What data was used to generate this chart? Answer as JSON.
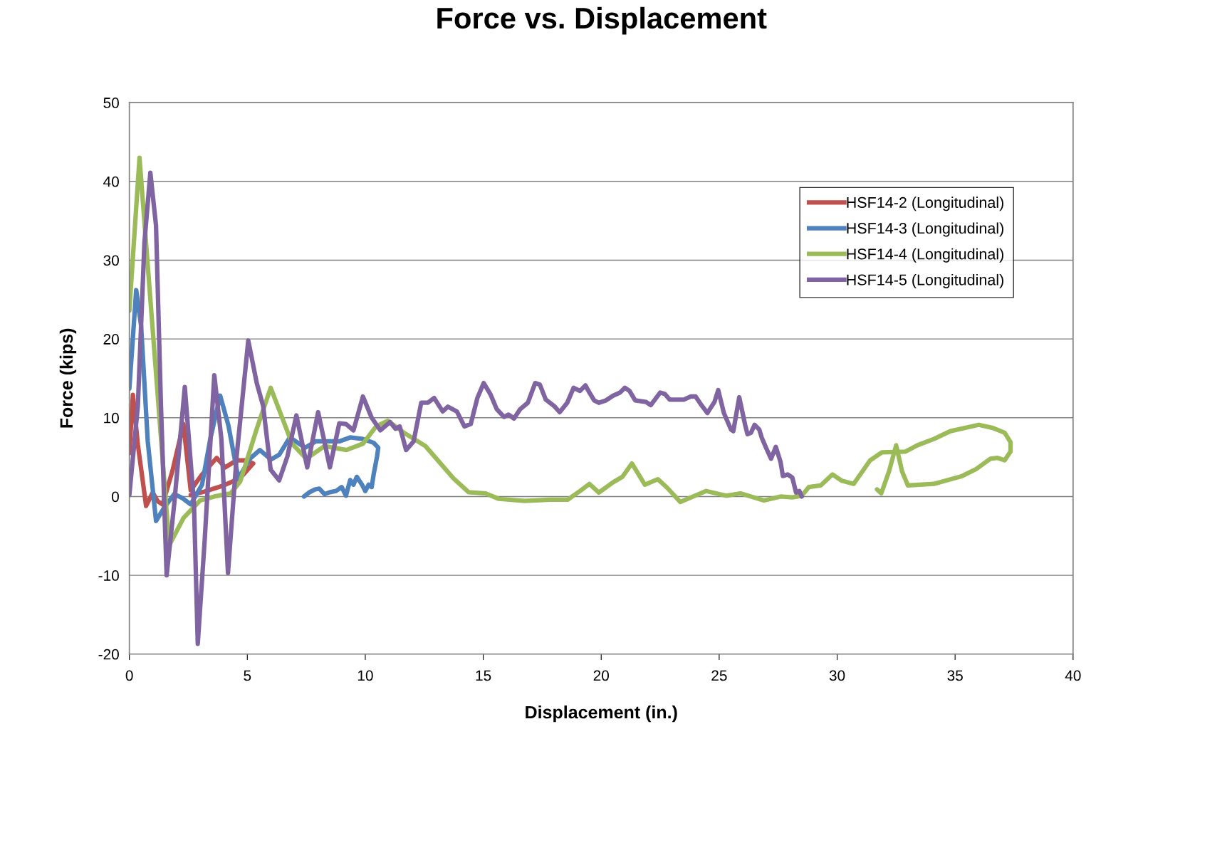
{
  "chart_data": {
    "type": "line",
    "title": "Force vs. Displacement",
    "xlabel": "Displacement (in.)",
    "ylabel": "Force (kips)",
    "xlim": [
      0,
      40
    ],
    "xticks": [
      0,
      5,
      10,
      15,
      20,
      25,
      30,
      35,
      40
    ],
    "ylim": [
      -20,
      50
    ],
    "yticks": [
      -20,
      -10,
      0,
      10,
      20,
      30,
      40,
      50
    ],
    "grid": "y",
    "legend": "top right",
    "marker": "none",
    "line_style": "solid",
    "series": [
      {
        "name": "HSF14-2 (Longitudinal)",
        "color": "#c0504d",
        "x": [
          0,
          0.15,
          0.36,
          0.71,
          0.99,
          1.2,
          1.41,
          1.83,
          2.29,
          2.6,
          3.08,
          3.7,
          4.06,
          4.55,
          4.97,
          5.25,
          4.69,
          3.99,
          3.16,
          2.6
        ],
        "values": [
          5.5,
          12.9,
          6.6,
          -1.2,
          0.5,
          -0.6,
          -1,
          3.3,
          9.2,
          0.8,
          2.8,
          4.9,
          3.7,
          4.6,
          4.6,
          4.2,
          2.3,
          1.4,
          0.6,
          0.2
        ]
      },
      {
        "name": "HSF14-3 (Longitudinal)",
        "color": "#4f81bd",
        "x": [
          0,
          0.29,
          0.5,
          0.78,
          1.13,
          1.48,
          1.9,
          2.25,
          2.6,
          3.08,
          3.43,
          3.85,
          4.2,
          4.62,
          5.11,
          5.53,
          6.0,
          6.35,
          6.8,
          7.45,
          7.9,
          8.45,
          8.9,
          9.36,
          9.9,
          10.36,
          10.55,
          10.5,
          10.36,
          10.27,
          10.14,
          10.0,
          9.86,
          9.64,
          9.5,
          9.36,
          9.18,
          9.0,
          8.76,
          8.5,
          8.27,
          8.05,
          7.87,
          7.64,
          7.4
        ],
        "values": [
          13.7,
          26.2,
          21.6,
          7,
          -3.1,
          -1.4,
          0.3,
          -0.2,
          -1,
          1.5,
          7.3,
          12.8,
          9.0,
          2.3,
          4.8,
          5.9,
          4.7,
          5.3,
          7.5,
          6.2,
          7.0,
          7.0,
          7.0,
          7.5,
          7.3,
          6.8,
          6.2,
          5.1,
          2.9,
          1.2,
          1.5,
          0.7,
          1.5,
          2.5,
          1.5,
          2.1,
          0.1,
          1.2,
          0.7,
          0.55,
          0.3,
          1.0,
          0.9,
          0.55,
          0
        ]
      },
      {
        "name": "HSF14-4 (Longitudinal)",
        "color": "#9bbb59",
        "x": [
          0,
          0.43,
          1.69,
          2.3,
          3.0,
          3.6,
          4.3,
          4.7,
          5.4,
          5.99,
          6.9,
          7.5,
          8.27,
          9.2,
          9.9,
          10.46,
          10.96,
          11.64,
          12.55,
          13.1,
          13.74,
          14.38,
          15.1,
          15.66,
          16.75,
          17.85,
          18.58,
          19.1,
          19.5,
          19.9,
          20.5,
          20.9,
          21.3,
          21.85,
          22.4,
          22.8,
          23.35,
          24.45,
          25.3,
          25.9,
          26.9,
          27.6,
          28.1,
          28.5,
          28.8,
          29.3,
          29.8,
          30.2,
          30.7,
          31.4,
          31.9,
          32.9,
          33.4,
          34.1,
          34.8,
          36.0,
          36.6,
          37.1,
          37.35,
          37.35,
          37.1,
          36.8,
          36.5,
          35.9,
          35.3,
          34.1,
          33.0,
          32.75,
          32.5,
          32.2,
          31.87,
          31.69
        ],
        "values": [
          23.6,
          43,
          -6.2,
          -2.7,
          -0.5,
          0,
          0.4,
          1.9,
          8.6,
          13.8,
          6.7,
          4.8,
          6.4,
          5.9,
          6.7,
          8.9,
          9.6,
          8.1,
          6.4,
          4.5,
          2.3,
          0.55,
          0.4,
          -0.3,
          -0.55,
          -0.4,
          -0.4,
          0.7,
          1.6,
          0.5,
          1.8,
          2.5,
          4.2,
          1.5,
          2.2,
          1.1,
          -0.7,
          0.7,
          0.1,
          0.4,
          -0.5,
          0,
          -0.1,
          0.1,
          1.2,
          1.4,
          2.8,
          2.0,
          1.6,
          4.6,
          5.6,
          5.7,
          6.5,
          7.3,
          8.3,
          9.1,
          8.7,
          8.1,
          6.9,
          5.7,
          4.6,
          4.9,
          4.8,
          3.5,
          2.6,
          1.6,
          1.4,
          3.2,
          6.5,
          3.2,
          0.4,
          0.9
        ]
      },
      {
        "name": "HSF14-5 (Longitudinal)",
        "color": "#8064a2",
        "x": [
          0,
          0.36,
          0.64,
          0.89,
          1.13,
          1.34,
          1.58,
          1.9,
          2.35,
          2.74,
          2.9,
          3.2,
          3.6,
          3.9,
          4.18,
          4.55,
          5.04,
          5.4,
          5.67,
          5.99,
          6.35,
          6.7,
          7.08,
          7.54,
          8.0,
          8.5,
          8.9,
          9.18,
          9.5,
          9.9,
          10.27,
          10.64,
          11.05,
          11.28,
          11.46,
          11.73,
          12.05,
          12.37,
          12.65,
          12.92,
          13.28,
          13.5,
          13.88,
          14.2,
          14.47,
          14.75,
          15.02,
          15.3,
          15.57,
          15.88,
          16.07,
          16.3,
          16.57,
          16.89,
          17.2,
          17.4,
          17.65,
          18.0,
          18.24,
          18.56,
          18.83,
          19.1,
          19.33,
          19.5,
          19.7,
          19.9,
          20.2,
          20.5,
          20.8,
          21.0,
          21.2,
          21.44,
          21.9,
          22.1,
          22.5,
          22.7,
          22.9,
          23.5,
          23.8,
          24.0,
          24.2,
          24.5,
          24.8,
          24.96,
          25.2,
          25.5,
          25.6,
          25.85,
          26.1,
          26.2,
          26.35,
          26.5,
          26.7,
          26.8,
          27.0,
          27.2,
          27.4,
          27.6,
          27.7,
          27.9,
          28.1,
          28.26,
          28.4,
          28.5
        ],
        "values": [
          0.2,
          11.5,
          32.3,
          41.1,
          34.4,
          11.5,
          -10,
          -1,
          13.9,
          -1,
          -18.7,
          -5.2,
          15.4,
          7.3,
          -9.7,
          5.2,
          19.8,
          14.4,
          11.5,
          3.4,
          2.05,
          5.1,
          10.3,
          3.7,
          10.7,
          3.7,
          9.3,
          9.2,
          8.4,
          12.7,
          10.0,
          8.4,
          9.45,
          8.6,
          8.9,
          5.9,
          7.0,
          11.9,
          11.9,
          12.5,
          10.8,
          11.4,
          10.8,
          8.9,
          9.2,
          12.5,
          14.4,
          13.0,
          11.1,
          10.1,
          10.4,
          9.9,
          11.1,
          11.9,
          14.4,
          14.2,
          12.3,
          11.5,
          10.7,
          11.9,
          13.8,
          13.4,
          14.1,
          13.2,
          12.2,
          11.9,
          12.2,
          12.8,
          13.2,
          13.8,
          13.4,
          12.2,
          12.0,
          11.6,
          13.2,
          13.0,
          12.3,
          12.3,
          12.7,
          12.7,
          11.8,
          10.6,
          12.0,
          13.5,
          10.6,
          8.5,
          8.3,
          12.6,
          9.1,
          7.9,
          8.1,
          9.1,
          8.5,
          7.5,
          6.1,
          4.8,
          6.3,
          4.4,
          2.6,
          2.8,
          2.4,
          0.5,
          0.7,
          0
        ]
      }
    ]
  }
}
